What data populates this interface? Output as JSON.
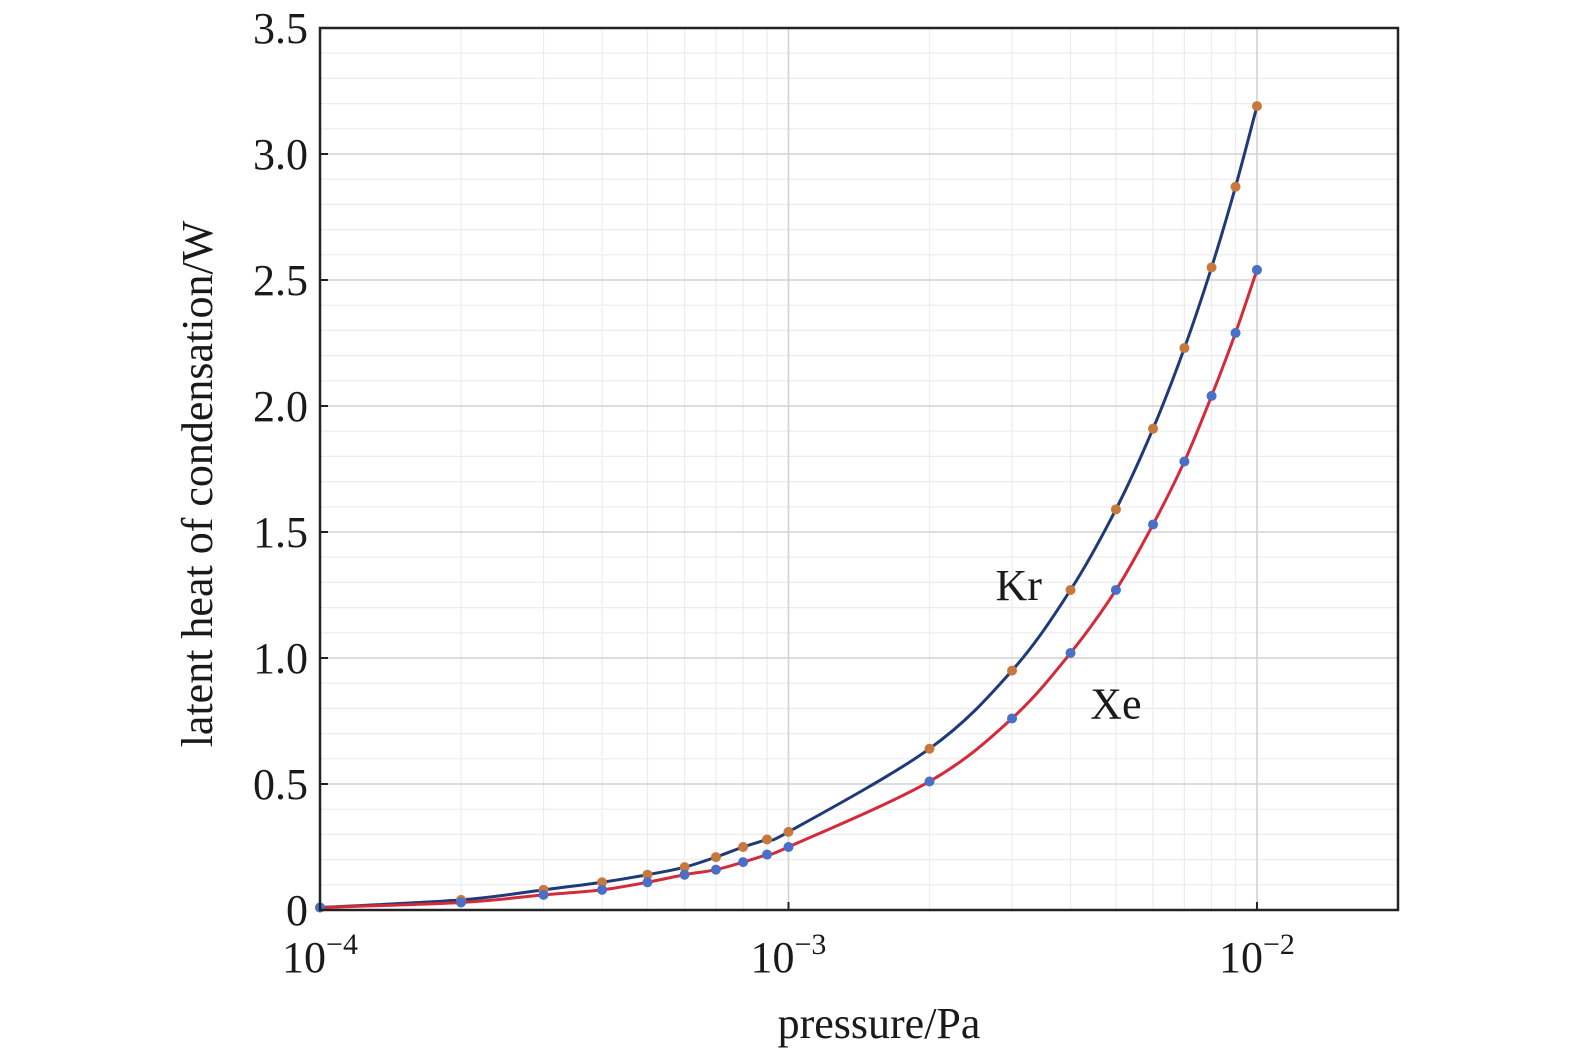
{
  "chart_data": {
    "type": "line",
    "title": "",
    "xlabel": "pressure/Pa",
    "ylabel": "latent heat of condensation/W",
    "xscale": "log",
    "xlim": [
      0.0001,
      0.02
    ],
    "ylim": [
      0,
      3.5
    ],
    "grid": true,
    "x_ticks": [
      {
        "value": 0.0001,
        "base": "10",
        "exp": "−4"
      },
      {
        "value": 0.001,
        "base": "10",
        "exp": "−3"
      },
      {
        "value": 0.01,
        "base": "10",
        "exp": "−2"
      }
    ],
    "y_ticks": [
      {
        "value": 0,
        "label": "0"
      },
      {
        "value": 0.5,
        "label": "0.5"
      },
      {
        "value": 1.0,
        "label": "1.0"
      },
      {
        "value": 1.5,
        "label": "1.5"
      },
      {
        "value": 2.0,
        "label": "2.0"
      },
      {
        "value": 2.5,
        "label": "2.5"
      },
      {
        "value": 3.0,
        "label": "3.0"
      },
      {
        "value": 3.5,
        "label": "3.5"
      }
    ],
    "x": [
      0.0001,
      0.0002,
      0.0003,
      0.0004,
      0.0005,
      0.0006,
      0.0007,
      0.0008,
      0.0009,
      0.001,
      0.002,
      0.003,
      0.004,
      0.005,
      0.006,
      0.007,
      0.008,
      0.009,
      0.01
    ],
    "series": [
      {
        "name": "Kr",
        "line_color": "#1f3a78",
        "marker_color": "#c8783c",
        "values": [
          0.01,
          0.04,
          0.08,
          0.11,
          0.14,
          0.17,
          0.21,
          0.25,
          0.28,
          0.31,
          0.64,
          0.95,
          1.27,
          1.59,
          1.91,
          2.23,
          2.55,
          2.87,
          3.19
        ]
      },
      {
        "name": "Xe",
        "line_color": "#d42a3a",
        "marker_color": "#4a6fc8",
        "values": [
          0.01,
          0.03,
          0.06,
          0.08,
          0.11,
          0.14,
          0.16,
          0.19,
          0.22,
          0.25,
          0.51,
          0.76,
          1.02,
          1.27,
          1.53,
          1.78,
          2.04,
          2.29,
          2.54
        ]
      }
    ],
    "annotations": [
      {
        "text": "Kr",
        "x": 0.0031,
        "y": 1.23
      },
      {
        "text": "Xe",
        "x": 0.005,
        "y": 0.76
      }
    ]
  }
}
